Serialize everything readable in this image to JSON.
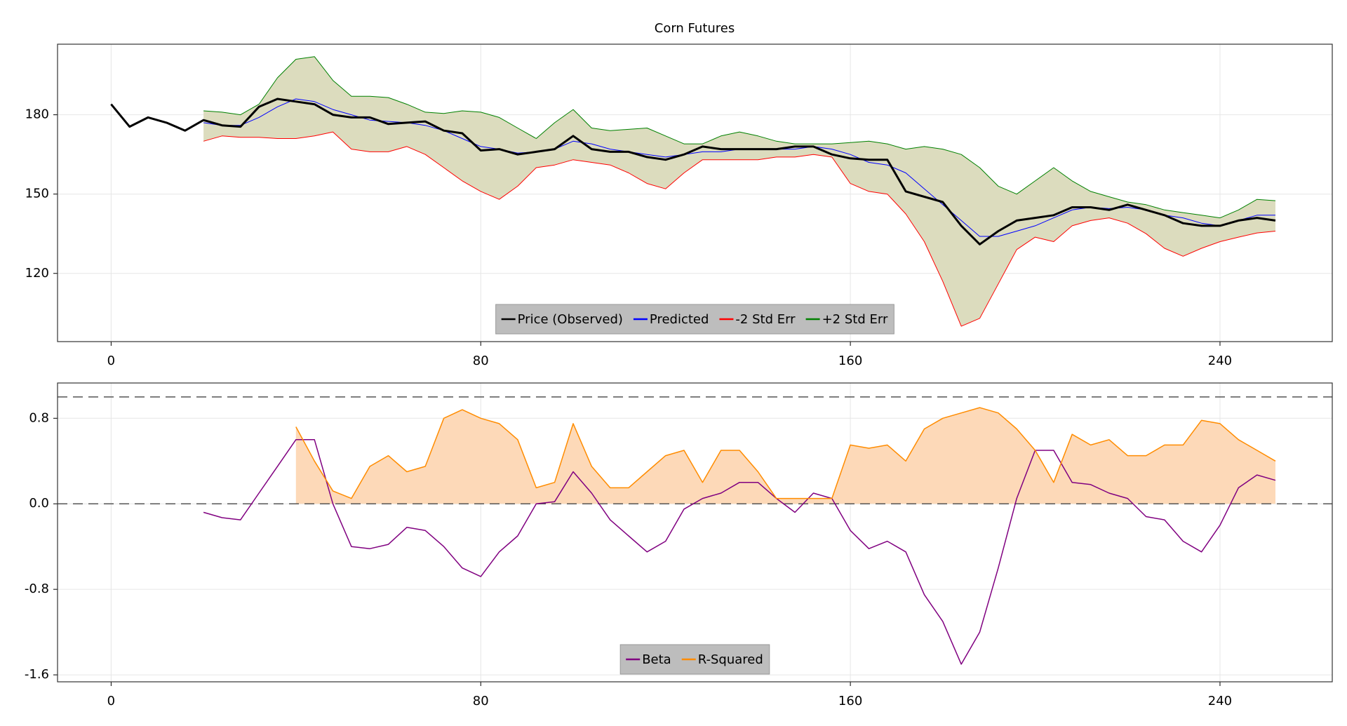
{
  "chart_data": [
    {
      "type": "line",
      "title": "Corn Futures",
      "x": [
        0,
        4,
        8,
        12,
        16,
        20,
        24,
        28,
        32,
        36,
        40,
        44,
        48,
        52,
        56,
        60,
        64,
        68,
        72,
        76,
        80,
        84,
        88,
        92,
        96,
        100,
        104,
        108,
        112,
        116,
        120,
        124,
        128,
        132,
        136,
        140,
        144,
        148,
        152,
        156,
        160,
        164,
        168,
        172,
        176,
        180,
        184,
        188,
        192,
        196,
        200,
        204,
        208,
        212,
        216,
        220,
        224,
        228,
        232,
        236,
        240,
        244,
        248,
        252
      ],
      "series": [
        {
          "name": "Price (Observed)",
          "color": "#000000",
          "width": 3,
          "values": [
            184,
            175.5,
            179,
            177,
            174,
            178,
            176,
            175.5,
            183,
            186,
            185,
            184,
            180,
            179,
            179,
            176.5,
            177,
            177.5,
            174,
            173,
            166.5,
            167,
            165,
            166,
            167,
            172,
            167,
            166,
            166,
            164,
            163,
            165,
            168,
            167,
            167,
            167,
            167,
            168,
            168,
            165,
            163.5,
            163,
            163,
            151,
            149,
            147,
            138,
            131,
            136,
            140,
            141,
            142,
            145,
            145,
            144,
            146,
            144,
            142,
            139,
            138,
            138,
            140,
            141,
            140
          ]
        },
        {
          "name": "Predicted",
          "color": "#0000ff",
          "width": 1,
          "values": [
            null,
            null,
            null,
            null,
            null,
            177,
            176,
            176,
            179,
            183,
            186,
            185,
            182,
            180,
            178,
            177.5,
            177,
            176,
            174,
            171,
            168,
            167,
            165.5,
            166,
            167,
            170,
            169,
            167,
            166,
            165,
            164,
            165,
            166,
            166,
            167,
            167,
            167,
            167,
            168,
            167,
            165,
            162,
            161,
            158,
            152,
            146,
            140,
            134,
            134,
            136,
            138,
            141,
            144,
            145,
            144.5,
            145,
            144,
            142,
            141,
            139,
            138,
            140,
            142,
            142
          ]
        },
        {
          "name": "-2 Std Err",
          "color": "#ff0000",
          "width": 1,
          "values": [
            null,
            null,
            null,
            null,
            null,
            170,
            172,
            171.5,
            171.5,
            171,
            171,
            172,
            173.5,
            167,
            166,
            166,
            168,
            165,
            160,
            155,
            151,
            148,
            153,
            160,
            161,
            163,
            162,
            161,
            158,
            154,
            152,
            158,
            163,
            163,
            163,
            163,
            164,
            164,
            165,
            164,
            154,
            151,
            150,
            142.5,
            132,
            117,
            100,
            103,
            116,
            129,
            133.7,
            132,
            138,
            140,
            141,
            139,
            135,
            129.5,
            126.5,
            129.5,
            132,
            133.7,
            135.3,
            136
          ]
        },
        {
          "name": "+2 Std Err",
          "color": "#008000",
          "width": 1,
          "values": [
            null,
            null,
            null,
            null,
            null,
            181.5,
            181,
            180,
            184,
            194,
            201,
            202,
            193,
            187,
            187,
            186.5,
            184,
            181,
            180.5,
            181.5,
            181,
            179,
            175,
            171,
            177,
            182,
            175,
            174,
            174.5,
            175,
            172,
            169,
            169,
            172,
            173.5,
            172,
            170,
            169,
            169,
            169,
            169.5,
            170,
            169,
            167,
            168,
            167,
            165,
            160,
            153,
            150,
            155,
            160,
            155,
            151,
            149,
            147,
            146,
            144,
            143,
            142,
            141,
            144,
            148,
            147.5
          ]
        }
      ],
      "band_fill": "#dcdcbe",
      "xlim": [
        -11.6,
        264.3
      ],
      "ylim": [
        94.2,
        206.7
      ],
      "xticks": [
        0,
        80,
        160,
        240
      ],
      "yticks": [
        120,
        150,
        180
      ],
      "grid": true,
      "legend": "lower center"
    },
    {
      "type": "line",
      "x": [
        0,
        4,
        8,
        12,
        16,
        20,
        24,
        28,
        32,
        36,
        40,
        44,
        48,
        52,
        56,
        60,
        64,
        68,
        72,
        76,
        80,
        84,
        88,
        92,
        96,
        100,
        104,
        108,
        112,
        116,
        120,
        124,
        128,
        132,
        136,
        140,
        144,
        148,
        152,
        156,
        160,
        164,
        168,
        172,
        176,
        180,
        184,
        188,
        192,
        196,
        200,
        204,
        208,
        212,
        216,
        220,
        224,
        228,
        232,
        236,
        240,
        244,
        248,
        252
      ],
      "series": [
        {
          "name": "Beta",
          "color": "#800080",
          "width": 1.5,
          "values": [
            null,
            null,
            null,
            null,
            null,
            -0.08,
            -0.13,
            -0.15,
            0.1,
            0.35,
            0.6,
            0.6,
            0.0,
            -0.4,
            -0.42,
            -0.38,
            -0.22,
            -0.25,
            -0.4,
            -0.6,
            -0.68,
            -0.45,
            -0.3,
            0.0,
            0.02,
            0.3,
            0.1,
            -0.15,
            -0.3,
            -0.45,
            -0.35,
            -0.05,
            0.05,
            0.1,
            0.2,
            0.2,
            0.05,
            -0.08,
            0.1,
            0.05,
            -0.25,
            -0.42,
            -0.35,
            -0.45,
            -0.85,
            -1.1,
            -1.5,
            -1.2,
            -0.6,
            0.05,
            0.5,
            0.5,
            0.2,
            0.18,
            0.1,
            0.05,
            -0.12,
            -0.15,
            -0.35,
            -0.45,
            -0.2,
            0.15,
            0.27,
            0.22
          ]
        },
        {
          "name": "R-Squared",
          "color": "#ff8c00",
          "width": 1.5,
          "fill": "#fdd9b8",
          "values": [
            null,
            null,
            null,
            null,
            null,
            null,
            null,
            null,
            null,
            null,
            0.72,
            0.4,
            0.12,
            0.05,
            0.35,
            0.45,
            0.3,
            0.35,
            0.8,
            0.88,
            0.8,
            0.75,
            0.6,
            0.15,
            0.2,
            0.75,
            0.35,
            0.15,
            0.15,
            0.3,
            0.45,
            0.5,
            0.2,
            0.5,
            0.5,
            0.3,
            0.05,
            0.05,
            0.05,
            0.05,
            0.55,
            0.52,
            0.55,
            0.4,
            0.7,
            0.8,
            0.85,
            0.9,
            0.85,
            0.7,
            0.5,
            0.2,
            0.65,
            0.55,
            0.6,
            0.45,
            0.45,
            0.55,
            0.55,
            0.78,
            0.75,
            0.6,
            0.5,
            0.4
          ]
        }
      ],
      "hlines": [
        0,
        1
      ],
      "xlim": [
        -11.6,
        264.3
      ],
      "ylim": [
        -1.665,
        1.13
      ],
      "xticks": [
        0,
        80,
        160,
        240
      ],
      "yticks": [
        -1.6,
        -0.8,
        {
          "value": 0,
          "label": "0.0"
        },
        0.8
      ],
      "grid": true,
      "legend": "lower center"
    }
  ]
}
